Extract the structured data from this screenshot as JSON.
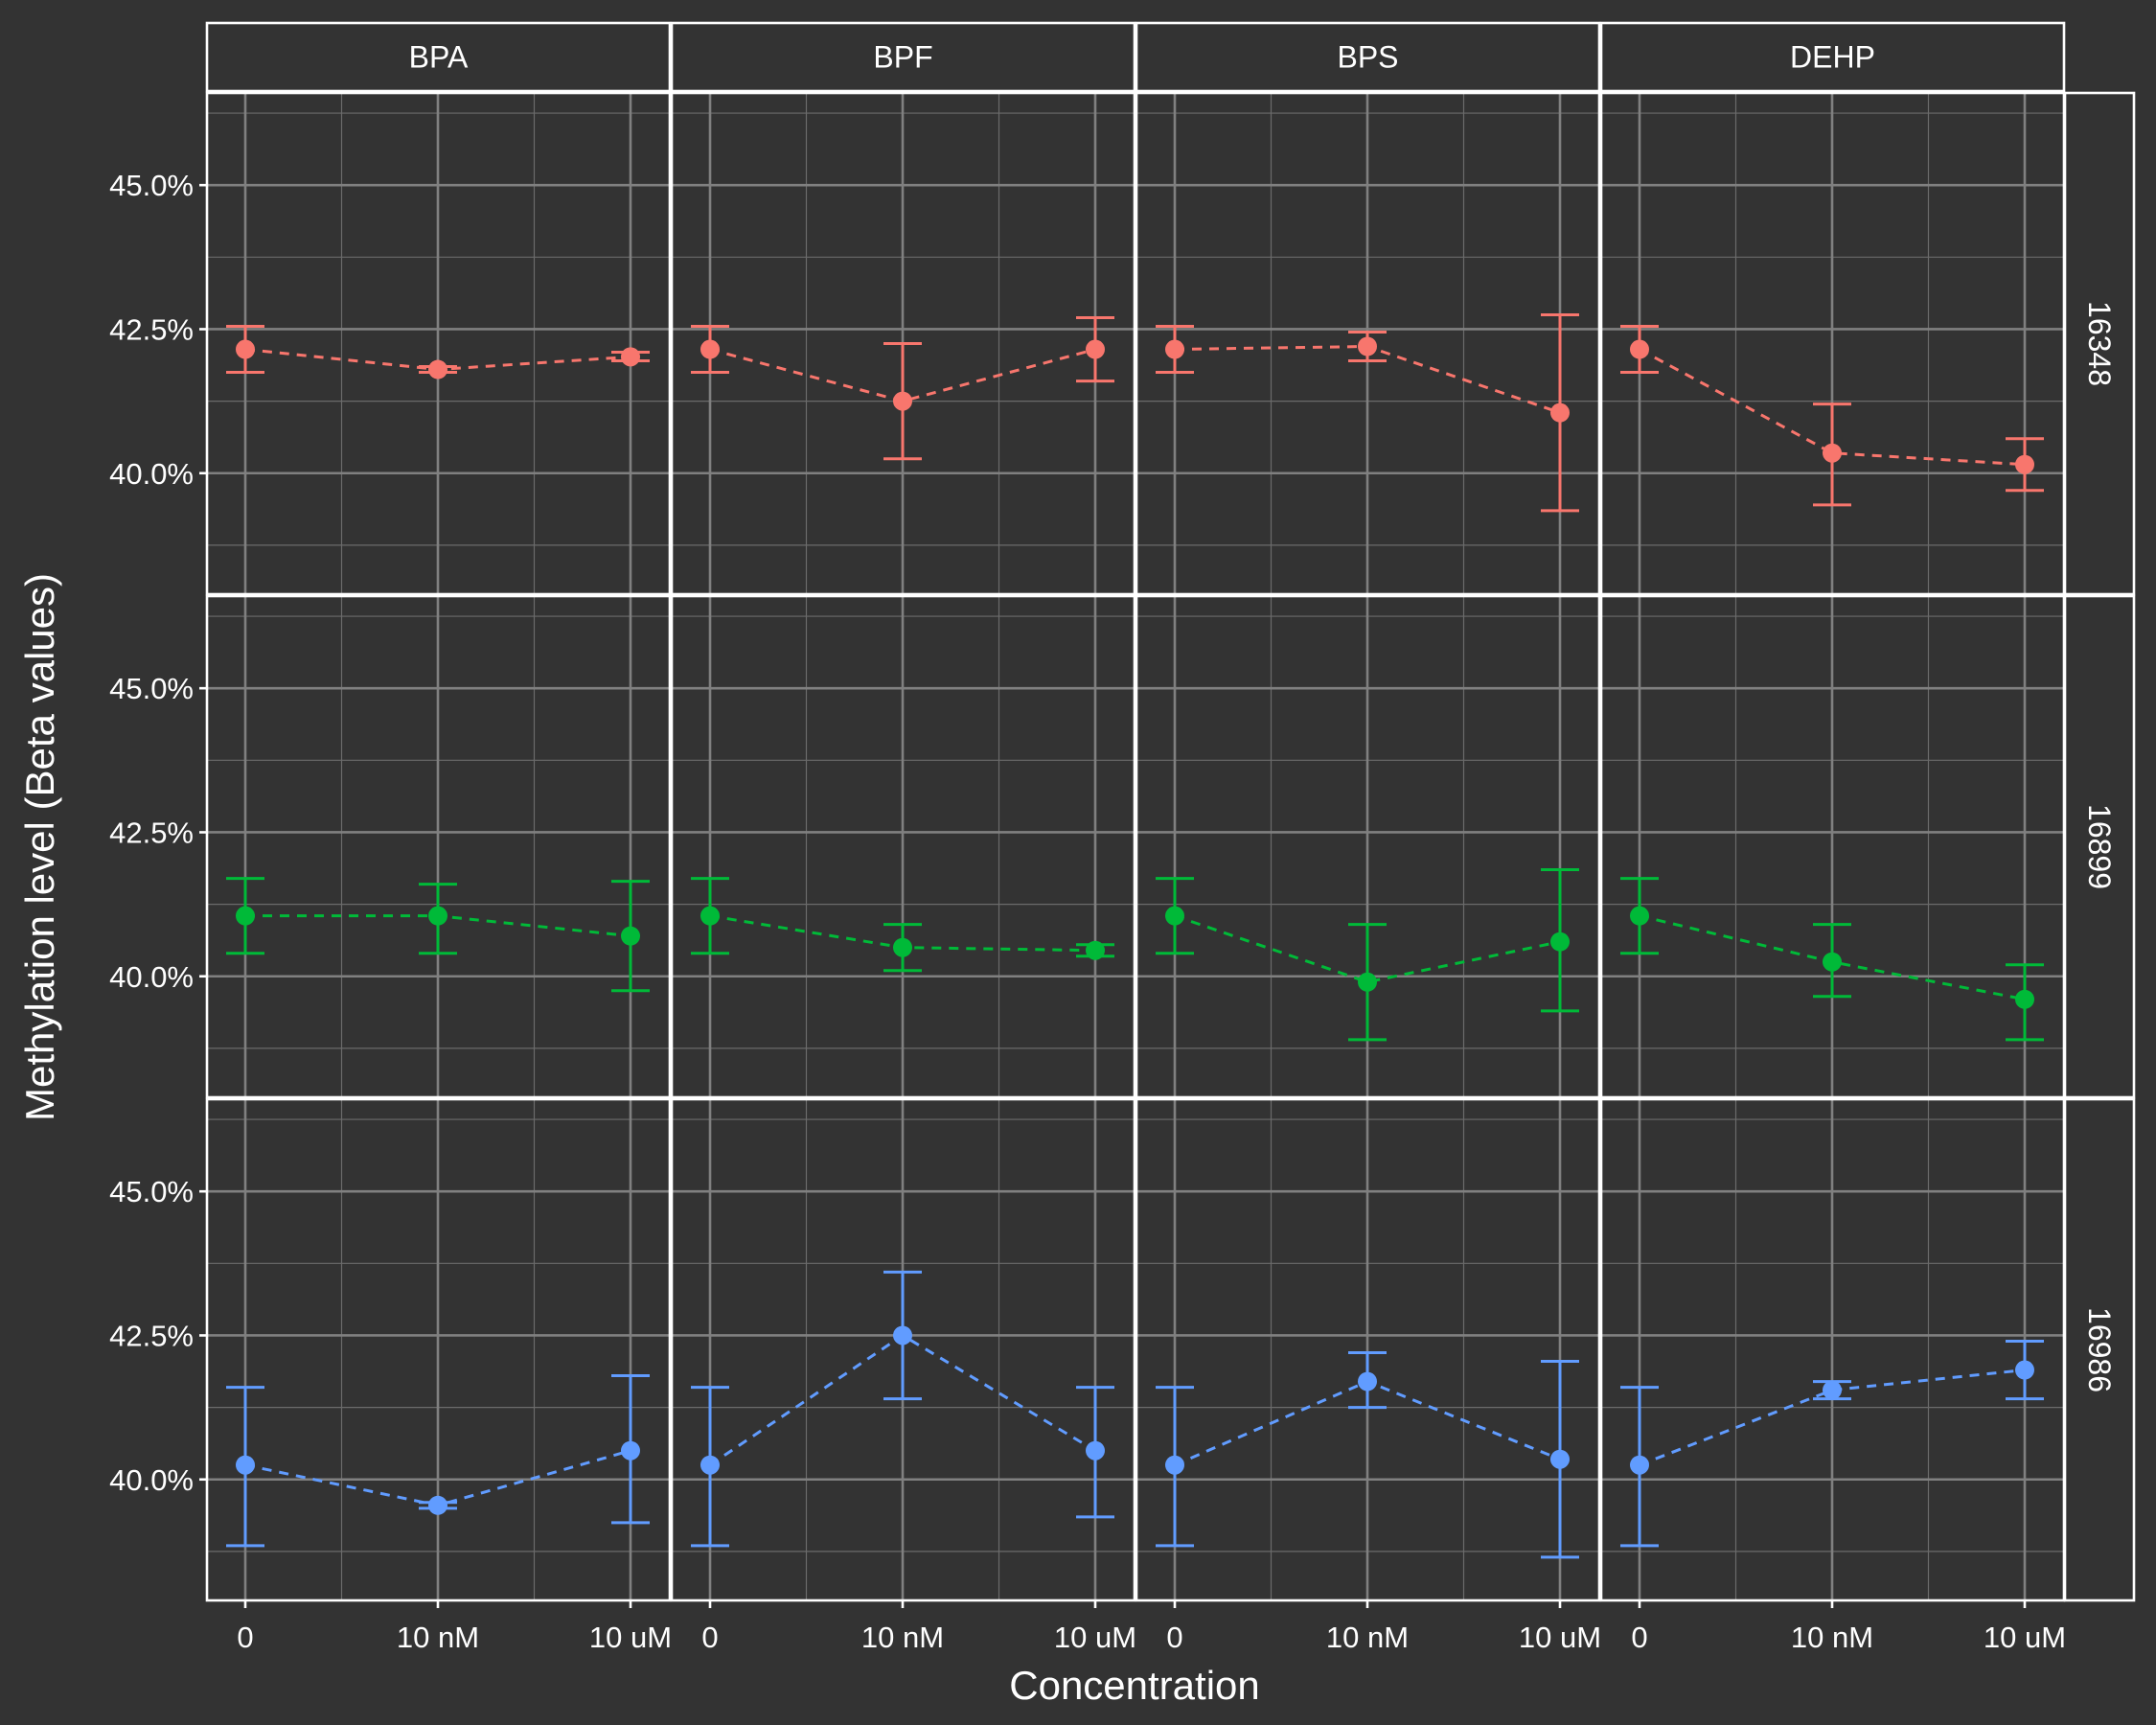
{
  "chart_data": {
    "type": "line",
    "xlabel": "Concentration",
    "ylabel": "Methylation level (Beta values)",
    "x_categories": [
      "0",
      "10 nM",
      "10 uM"
    ],
    "y_ticks": [
      40.0,
      42.5,
      45.0
    ],
    "y_tick_labels": [
      "40.0%",
      "42.5%",
      "45.0%"
    ],
    "ylim": [
      37.9,
      46.6
    ],
    "grid": true,
    "error_bars": true,
    "facet_columns": [
      "BPA",
      "BPF",
      "BPS",
      "DEHP"
    ],
    "facet_rows": [
      {
        "label": "16348",
        "color": "#F8766D",
        "panels": [
          {
            "column": "BPA",
            "values": [
              42.15,
              41.8,
              42.02
            ],
            "err_low": [
              41.75,
              41.75,
              41.95
            ],
            "err_high": [
              42.55,
              41.85,
              42.1
            ]
          },
          {
            "column": "BPF",
            "values": [
              42.15,
              41.25,
              42.15
            ],
            "err_low": [
              41.75,
              40.25,
              41.6
            ],
            "err_high": [
              42.55,
              42.25,
              42.7
            ]
          },
          {
            "column": "BPS",
            "values": [
              42.15,
              42.2,
              41.05
            ],
            "err_low": [
              41.75,
              41.95,
              39.35
            ],
            "err_high": [
              42.55,
              42.45,
              42.75
            ]
          },
          {
            "column": "DEHP",
            "values": [
              42.15,
              40.35,
              40.15
            ],
            "err_low": [
              41.75,
              39.45,
              39.7
            ],
            "err_high": [
              42.55,
              41.2,
              40.6
            ]
          }
        ]
      },
      {
        "label": "16899",
        "color": "#00BA38",
        "panels": [
          {
            "column": "BPA",
            "values": [
              41.05,
              41.05,
              40.7
            ],
            "err_low": [
              40.4,
              40.4,
              39.75
            ],
            "err_high": [
              41.7,
              41.6,
              41.65
            ]
          },
          {
            "column": "BPF",
            "values": [
              41.05,
              40.5,
              40.45
            ],
            "err_low": [
              40.4,
              40.1,
              40.35
            ],
            "err_high": [
              41.7,
              40.9,
              40.55
            ]
          },
          {
            "column": "BPS",
            "values": [
              41.05,
              39.9,
              40.6
            ],
            "err_low": [
              40.4,
              38.9,
              39.4
            ],
            "err_high": [
              41.7,
              40.9,
              41.85
            ]
          },
          {
            "column": "DEHP",
            "values": [
              41.05,
              40.25,
              39.6
            ],
            "err_low": [
              40.4,
              39.65,
              38.9
            ],
            "err_high": [
              41.7,
              40.9,
              40.2
            ]
          }
        ]
      },
      {
        "label": "16986",
        "color": "#619CFF",
        "panels": [
          {
            "column": "BPA",
            "values": [
              40.25,
              39.55,
              40.5
            ],
            "err_low": [
              38.85,
              39.5,
              39.25
            ],
            "err_high": [
              41.6,
              39.6,
              41.8
            ]
          },
          {
            "column": "BPF",
            "values": [
              40.25,
              42.5,
              40.5
            ],
            "err_low": [
              38.85,
              41.4,
              39.35
            ],
            "err_high": [
              41.6,
              43.6,
              41.6
            ]
          },
          {
            "column": "BPS",
            "values": [
              40.25,
              41.7,
              40.35
            ],
            "err_low": [
              38.85,
              41.25,
              38.65
            ],
            "err_high": [
              41.6,
              42.2,
              42.05
            ]
          },
          {
            "column": "DEHP",
            "values": [
              40.25,
              41.55,
              41.9
            ],
            "err_low": [
              38.85,
              41.4,
              41.4
            ],
            "err_high": [
              41.6,
              41.7,
              42.4
            ]
          }
        ]
      }
    ]
  }
}
